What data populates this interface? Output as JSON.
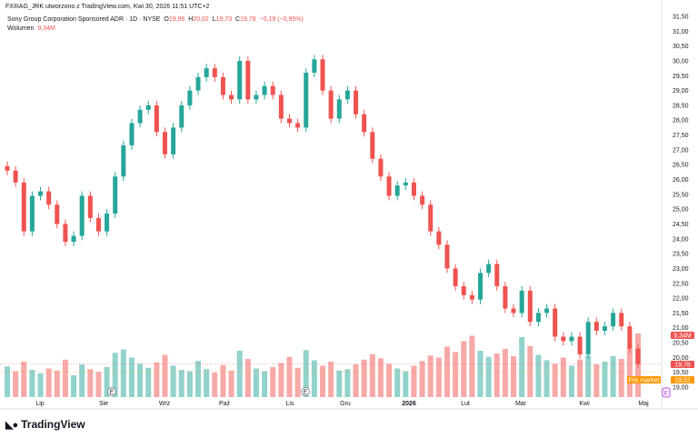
{
  "header": {
    "topline": "FXIIIAG_JRK utworzono z TradingView.com, Kwi 30, 2026 11:51 UTC+2",
    "symbol": "Sony Group Corporation Sponsored ADR · 1D · NYSE",
    "o_label": "O",
    "o": "19,96",
    "h_label": "H",
    "h": "20,02",
    "l_label": "L",
    "l": "19,73",
    "c_label": "C",
    "c": "19,78",
    "change": "−0,19 (−0,95%)",
    "volume_label": "Wolumen",
    "volume": "9,34M"
  },
  "colors": {
    "up": "#26a69a",
    "down": "#ef5350",
    "premarket": "#ff9800",
    "earnings": "#b84ae8"
  },
  "price_axis": [
    "31,50",
    "31,00",
    "30,50",
    "30,00",
    "29,50",
    "29,00",
    "28,50",
    "28,00",
    "27,50",
    "27,00",
    "26,50",
    "26,00",
    "25,50",
    "25,00",
    "24,50",
    "24,00",
    "23,50",
    "23,00",
    "22,50",
    "22,00",
    "21,50",
    "21,00",
    "20,50",
    "20,00",
    "19,50",
    "19,00"
  ],
  "time_axis": [
    "Lip",
    "Sie",
    "Wrz",
    "Paź",
    "Lis",
    "Gru",
    "2026",
    "Lut",
    "Mar",
    "Kwi",
    "Maj"
  ],
  "badges": {
    "volume": "9,34M",
    "price": "19,78",
    "premarket_label": "Pre market",
    "premarket_price": "19,52",
    "earnings": "E"
  },
  "logo": "TradingView",
  "chart_data": {
    "type": "candlestick",
    "ylim": [
      19.0,
      31.5
    ],
    "price_min_label": 19.0,
    "closes": [
      26.3,
      25.9,
      24.25,
      25.45,
      25.6,
      25.15,
      24.5,
      23.9,
      24.1,
      25.45,
      24.7,
      24.25,
      24.85,
      26.1,
      27.15,
      27.9,
      28.35,
      28.5,
      27.6,
      26.85,
      27.75,
      28.5,
      29.0,
      29.45,
      29.75,
      29.45,
      28.85,
      28.7,
      30.0,
      28.7,
      28.85,
      29.15,
      28.85,
      28.05,
      27.9,
      27.75,
      29.6,
      30.05,
      29.0,
      28.05,
      28.7,
      29.0,
      28.2,
      27.6,
      26.7,
      26.1,
      25.45,
      25.8,
      25.9,
      25.45,
      25.15,
      24.25,
      23.8,
      23.0,
      22.4,
      22.1,
      21.95,
      22.85,
      23.15,
      22.4,
      21.65,
      21.5,
      22.25,
      21.2,
      21.5,
      21.65,
      20.7,
      20.55,
      20.7,
      20.1,
      21.2,
      20.9,
      21.05,
      21.5,
      21.05,
      20.3,
      19.78
    ],
    "volumes_m": [
      4.5,
      3.8,
      5.2,
      4.0,
      3.5,
      4.2,
      3.9,
      5.5,
      3.2,
      4.8,
      4.1,
      3.7,
      4.4,
      6.5,
      7.0,
      5.8,
      4.9,
      4.3,
      5.1,
      6.2,
      4.6,
      4.0,
      3.8,
      5.3,
      4.1,
      3.6,
      4.7,
      3.9,
      6.8,
      5.6,
      4.2,
      3.8,
      4.4,
      5.0,
      5.9,
      4.3,
      6.9,
      5.4,
      4.6,
      5.2,
      3.9,
      4.1,
      4.8,
      5.5,
      6.3,
      5.7,
      4.9,
      4.2,
      3.8,
      4.6,
      5.3,
      6.1,
      5.8,
      7.4,
      6.6,
      8.2,
      9.0,
      6.8,
      5.9,
      6.4,
      7.1,
      6.0,
      8.8,
      7.5,
      6.2,
      5.4,
      4.9,
      5.8,
      4.6,
      5.5,
      6.1,
      4.8,
      5.2,
      6.0,
      5.6,
      7.3,
      9.34
    ],
    "start_date_label": "Lip",
    "end_date_label": "Maj",
    "last_close": 19.78,
    "premarket_price": 19.52
  }
}
